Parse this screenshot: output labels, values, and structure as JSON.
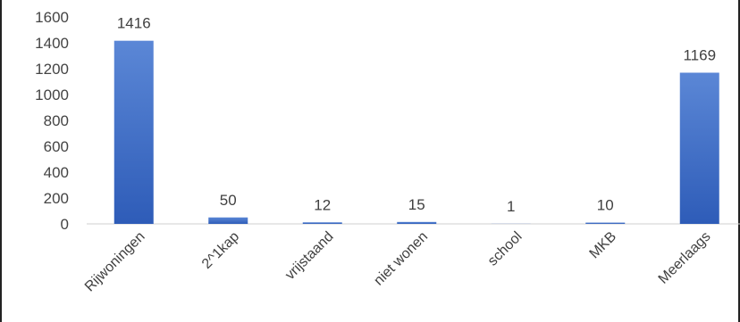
{
  "chart_data": {
    "type": "bar",
    "categories": [
      "Rijwoningen",
      "2^1kap",
      "vrijstaand",
      "niet wonen",
      "school",
      "MKB",
      "Meerlaags"
    ],
    "values": [
      1416,
      50,
      12,
      15,
      1,
      10,
      1169
    ],
    "data_labels": [
      "1416",
      "50",
      "12",
      "15",
      "1",
      "10",
      "1169"
    ],
    "y_ticks": [
      "0",
      "200",
      "400",
      "600",
      "800",
      "1000",
      "1200",
      "1400",
      "1600"
    ],
    "ylim": [
      0,
      1600
    ],
    "grid": false,
    "legend": "none",
    "bar_color_top": "#5b87d6",
    "bar_color_bottom": "#2e5cb8"
  }
}
